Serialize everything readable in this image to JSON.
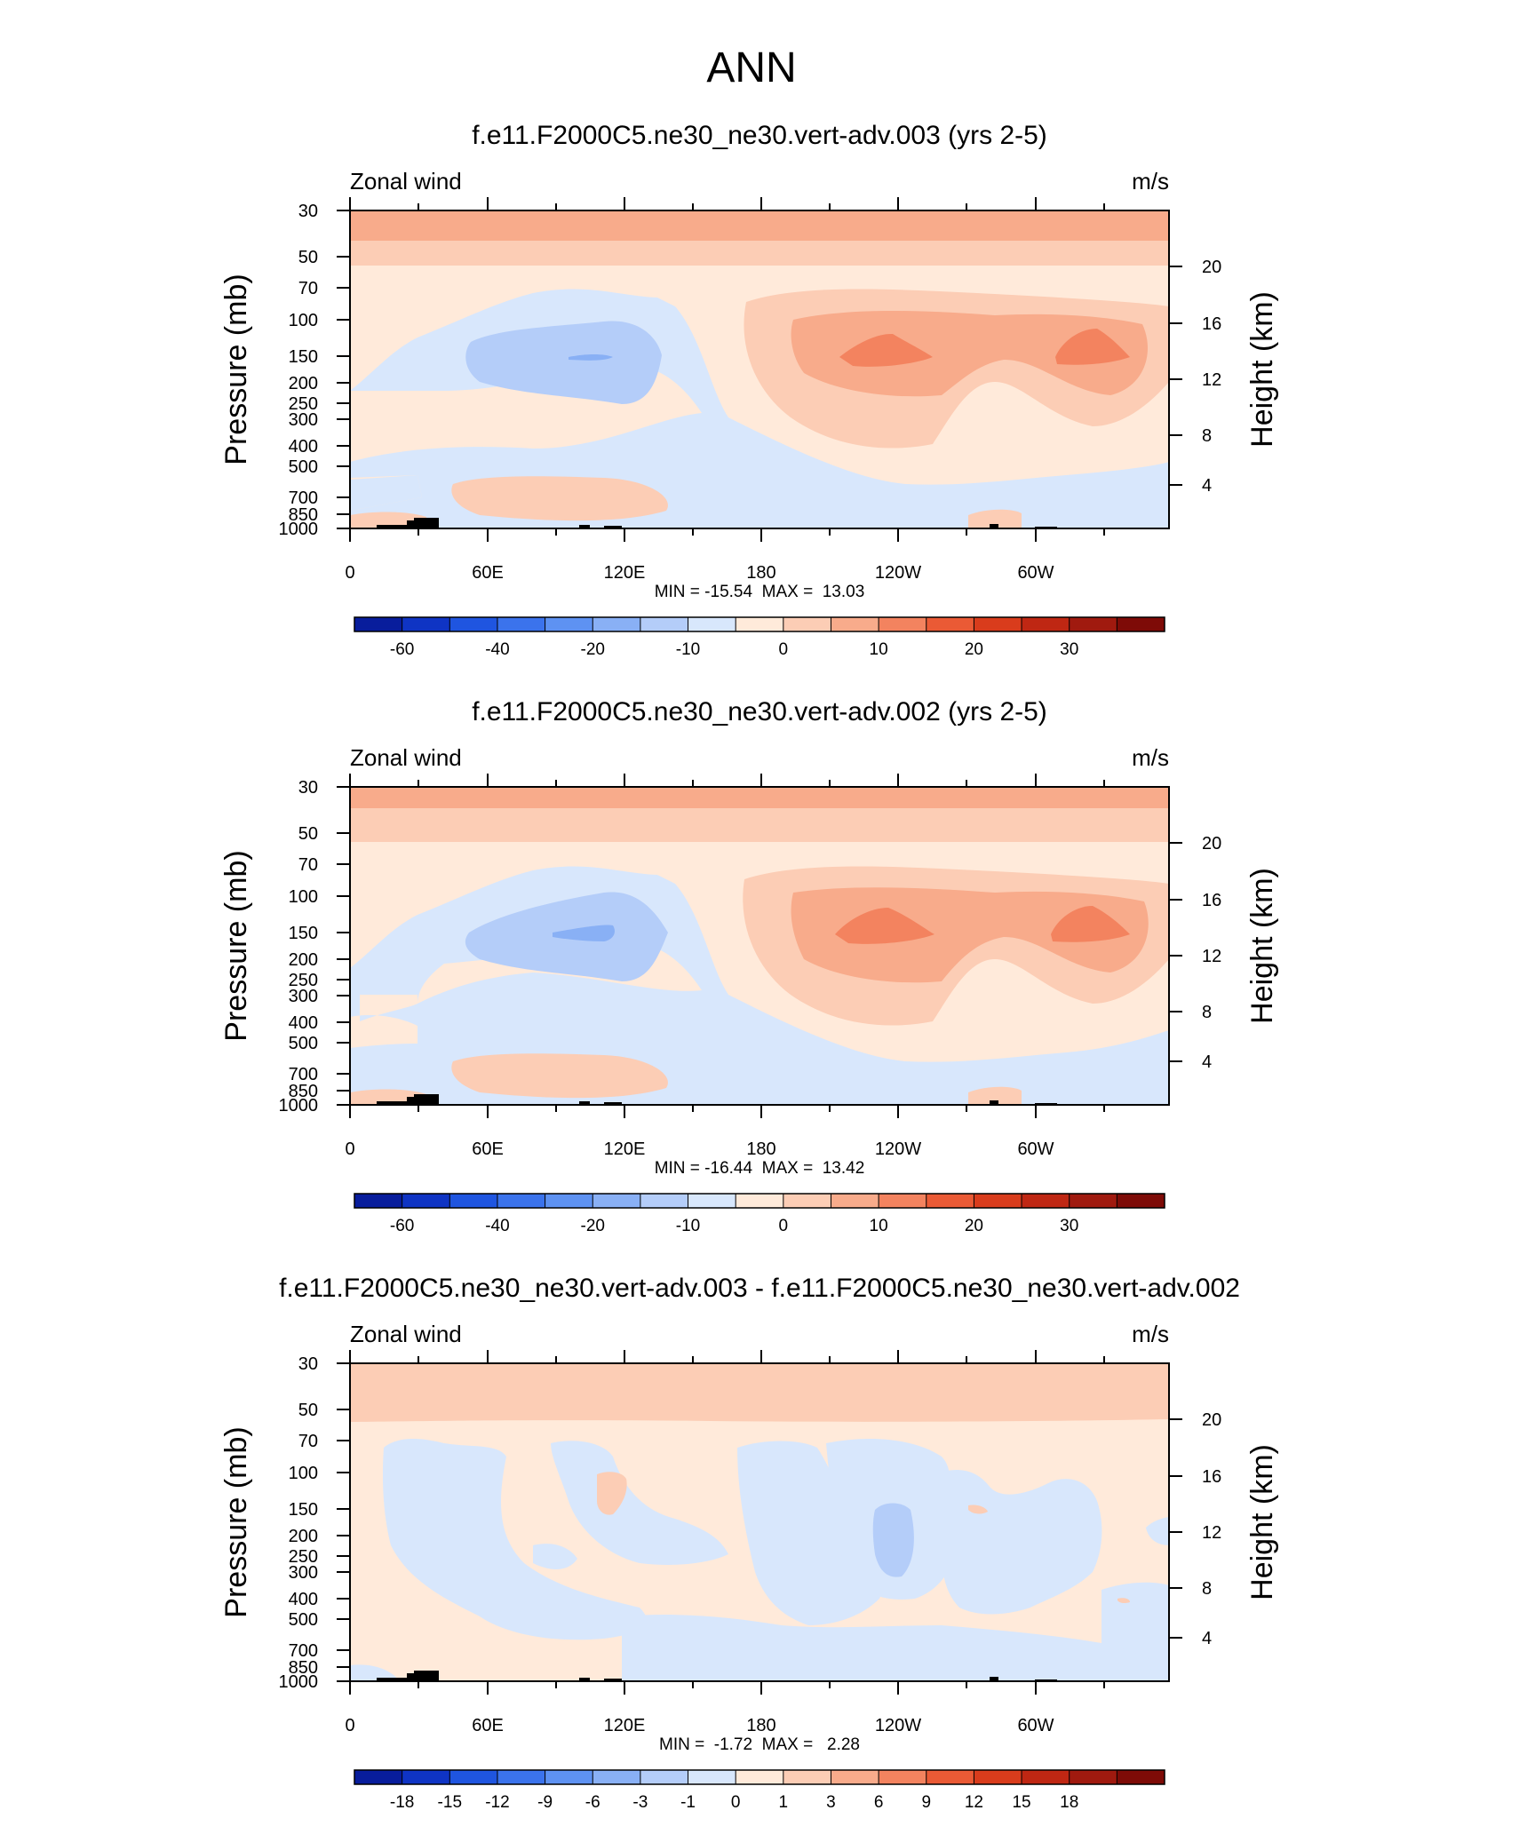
{
  "figure": {
    "title": "ANN"
  },
  "colors": {
    "palette": [
      "#081d9c",
      "#0f34c4",
      "#1f55e0",
      "#3b73ec",
      "#5e92f2",
      "#89b0f5",
      "#b4cdf9",
      "#d8e7fc",
      "#ffeada",
      "#fccdb5",
      "#f8ab8b",
      "#f3835f",
      "#ea5a35",
      "#d93c1c",
      "#bf2713",
      "#a01a0f",
      "#7e0b07"
    ]
  },
  "chart_data": [
    {
      "type": "heatmap",
      "title": "f.e11.F2000C5.ne30_ne30.vert-adv.003 (yrs 2-5)",
      "left_label": "Zonal wind",
      "right_label": "m/s",
      "ylabel": "Pressure (mb)",
      "y2label": "Height (km)",
      "xlim": [
        0,
        360
      ],
      "x_ticks": [
        "0",
        "60E",
        "120E",
        "180",
        "120W",
        "60W"
      ],
      "y_ticks": [
        "30",
        "50",
        "70",
        "100",
        "150",
        "200",
        "250",
        "300",
        "400",
        "500",
        "700",
        "850",
        "1000"
      ],
      "y2_ticks": [
        "20",
        "16",
        "12",
        "8",
        "4"
      ],
      "stats": "MIN = -15.54  MAX =  13.03",
      "colorbar_labels": [
        "-60",
        "-40",
        "-20",
        "-10",
        "0",
        "10",
        "20",
        "30"
      ]
    },
    {
      "type": "heatmap",
      "title": "f.e11.F2000C5.ne30_ne30.vert-adv.002 (yrs 2-5)",
      "left_label": "Zonal wind",
      "right_label": "m/s",
      "ylabel": "Pressure (mb)",
      "y2label": "Height (km)",
      "xlim": [
        0,
        360
      ],
      "x_ticks": [
        "0",
        "60E",
        "120E",
        "180",
        "120W",
        "60W"
      ],
      "y_ticks": [
        "30",
        "50",
        "70",
        "100",
        "150",
        "200",
        "250",
        "300",
        "400",
        "500",
        "700",
        "850",
        "1000"
      ],
      "y2_ticks": [
        "20",
        "16",
        "12",
        "8",
        "4"
      ],
      "stats": "MIN = -16.44  MAX =  13.42",
      "colorbar_labels": [
        "-60",
        "-40",
        "-20",
        "-10",
        "0",
        "10",
        "20",
        "30"
      ]
    },
    {
      "type": "heatmap",
      "title": "f.e11.F2000C5.ne30_ne30.vert-adv.003 - f.e11.F2000C5.ne30_ne30.vert-adv.002",
      "left_label": "Zonal wind",
      "right_label": "m/s",
      "ylabel": "Pressure (mb)",
      "y2label": "Height (km)",
      "xlim": [
        0,
        360
      ],
      "x_ticks": [
        "0",
        "60E",
        "120E",
        "180",
        "120W",
        "60W"
      ],
      "y_ticks": [
        "30",
        "50",
        "70",
        "100",
        "150",
        "200",
        "250",
        "300",
        "400",
        "500",
        "700",
        "850",
        "1000"
      ],
      "y2_ticks": [
        "20",
        "16",
        "12",
        "8",
        "4"
      ],
      "stats": "MIN =  -1.72  MAX =   2.28",
      "colorbar_labels": [
        "-18",
        "-15",
        "-12",
        "-9",
        "-6",
        "-3",
        "-1",
        "0",
        "1",
        "3",
        "6",
        "9",
        "12",
        "15",
        "18"
      ]
    }
  ]
}
